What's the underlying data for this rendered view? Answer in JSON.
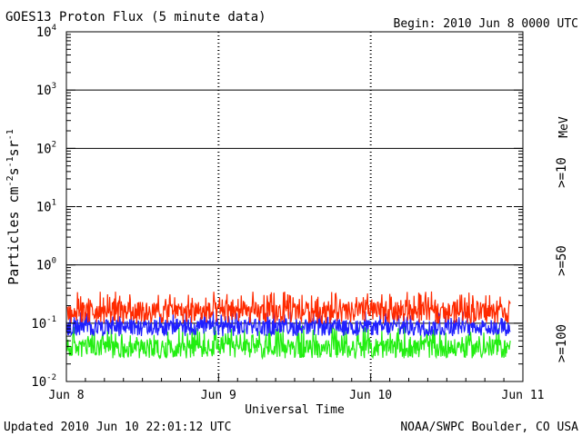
{
  "header": {
    "title": "GOES13 Proton Flux (5 minute data)",
    "begin": "Begin: 2010 Jun 8 0000 UTC"
  },
  "footer": {
    "updated": "Updated 2010 Jun 10 22:01:12 UTC",
    "source": "NOAA/SWPC Boulder, CO USA"
  },
  "legend": {
    "unit": "MeV",
    "items": [
      {
        "label": ">=10",
        "color": "#ff2a00"
      },
      {
        "label": ">=50",
        "color": "#2020ff"
      },
      {
        "label": ">=100",
        "color": "#22ee11"
      }
    ]
  },
  "chart_data": {
    "type": "line",
    "title": "GOES13 Proton Flux (5 minute data)",
    "xlabel": "Universal Time",
    "ylabel": "Particles cm⁻²s⁻¹sr⁻¹",
    "yscale": "log",
    "ylim": [
      0.01,
      10000
    ],
    "ytick_values": [
      0.01,
      0.1,
      1,
      10,
      100,
      1000,
      10000
    ],
    "ytick_labels": [
      {
        "base": "10",
        "exp": "-2"
      },
      {
        "base": "10",
        "exp": "-1"
      },
      {
        "base": "10",
        "exp": "0"
      },
      {
        "base": "10",
        "exp": "1"
      },
      {
        "base": "10",
        "exp": "2"
      },
      {
        "base": "10",
        "exp": "3"
      },
      {
        "base": "10",
        "exp": "4"
      }
    ],
    "x_range": [
      "2010-06-08 00:00",
      "2010-06-11 00:00"
    ],
    "x_tick_labels": [
      "Jun 8",
      "Jun 9",
      "Jun 10",
      "Jun 11"
    ],
    "x_end": "2010-06-10 22:00",
    "threshold_lines": [
      {
        "value": 0.1,
        "style": "solid"
      },
      {
        "value": 1,
        "style": "solid"
      },
      {
        "value": 10,
        "style": "dashed"
      },
      {
        "value": 100,
        "style": "solid"
      },
      {
        "value": 1000,
        "style": "solid"
      }
    ],
    "series": [
      {
        "name": ">=10 MeV",
        "color": "#ff2a00",
        "low": 0.1,
        "high": 0.35,
        "typical": 0.17
      },
      {
        "name": ">=50 MeV",
        "color": "#2020ff",
        "low": 0.06,
        "high": 0.16,
        "typical": 0.09
      },
      {
        "name": ">=100 MeV",
        "color": "#22ee11",
        "low": 0.025,
        "high": 0.09,
        "typical": 0.04
      }
    ]
  }
}
